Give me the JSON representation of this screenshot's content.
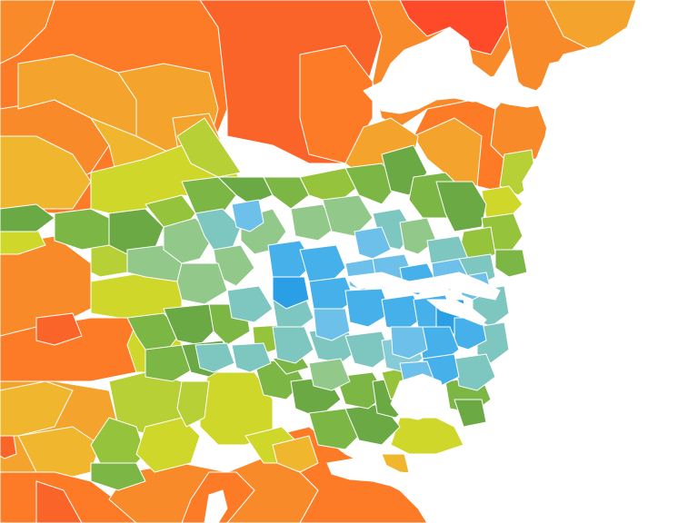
{
  "map": {
    "type": "choropleth",
    "region_unit": "suburb",
    "background_color": "#ffffff",
    "palette": {
      "red": "#ff4a2a",
      "red_orange": "#fb6428",
      "orange": "#fd7b26",
      "dark_orange": "#f88a2a",
      "amber": "#f4a42c",
      "gold": "#f0b72e",
      "yellow_green": "#cfd72a",
      "lime": "#b6d036",
      "light_green": "#95c43c",
      "green": "#7cb644",
      "dark_green": "#6aa944",
      "sage": "#92c98a",
      "teal": "#7ec6c0",
      "light_teal": "#86cbd6",
      "sky": "#6cc0ea",
      "blue": "#46b0ea",
      "deep_blue": "#2a9fe6"
    },
    "legend": null,
    "labels": []
  }
}
